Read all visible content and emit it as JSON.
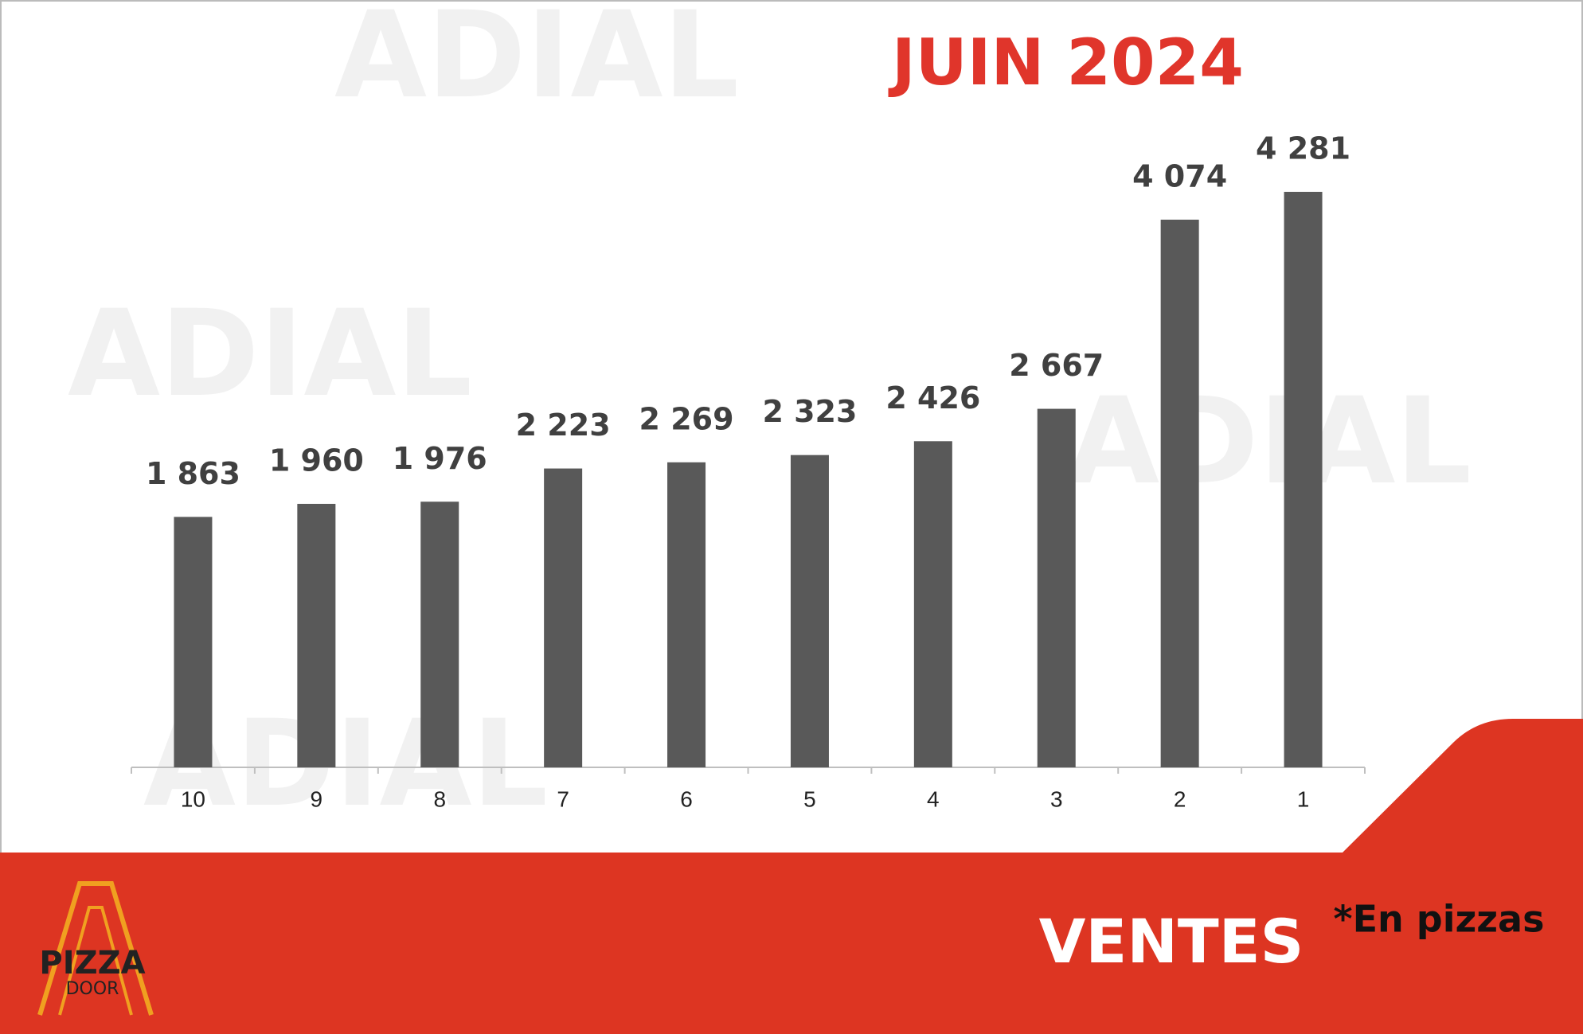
{
  "chart_data": {
    "type": "bar",
    "title": "JUIN 2024",
    "categories": [
      "10",
      "9",
      "8",
      "7",
      "6",
      "5",
      "4",
      "3",
      "2",
      "1"
    ],
    "values": [
      1863,
      1960,
      1976,
      2223,
      2269,
      2323,
      2426,
      2667,
      4074,
      4281
    ],
    "value_labels": [
      "1 863",
      "1 960",
      "1 976",
      "2 223",
      "2 269",
      "2 323",
      "2 426",
      "2 667",
      "4 074",
      "4 281"
    ],
    "color": "#595959"
  },
  "footer": {
    "title": "VENTES",
    "note": "*En pizzas"
  },
  "logo": {
    "name": "PIZZA",
    "sub": "DOOR"
  },
  "watermark": "ADIAL"
}
